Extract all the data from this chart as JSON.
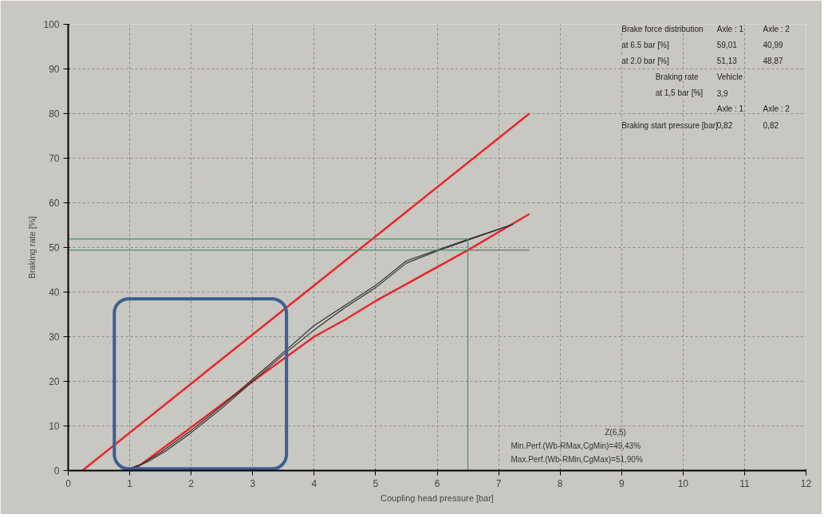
{
  "chart_data": {
    "type": "line",
    "xlabel": "Coupling head pressure [bar]",
    "ylabel": "Braking rate [%]",
    "xlim": [
      0,
      12
    ],
    "xticks": [
      0,
      1,
      2,
      3,
      4,
      5,
      6,
      7,
      8,
      9,
      10,
      11,
      12
    ],
    "ylim": [
      0,
      100
    ],
    "yticks": [
      0,
      10,
      20,
      30,
      40,
      50,
      60,
      70,
      80,
      90,
      100
    ],
    "grid": true,
    "marker": "none",
    "line_style": "solid",
    "series": [
      {
        "color": "#e8262a",
        "x": [
          0.23,
          7.5
        ],
        "values": [
          0,
          80
        ]
      },
      {
        "color": "#e8262a",
        "x": [
          1.05,
          2,
          3,
          4,
          4.5,
          5,
          6.5,
          7.5
        ],
        "values": [
          0,
          9.7,
          20,
          30,
          33.8,
          38,
          49.4,
          57.5
        ]
      },
      {
        "color": "#303030",
        "x": [
          0.9,
          1.2,
          1.5,
          2,
          2.5,
          3,
          3.5,
          4,
          4.5,
          5,
          5.5,
          6,
          6.5,
          7.24
        ],
        "values": [
          0,
          1.5,
          4,
          9,
          14.5,
          20.5,
          26.5,
          32.5,
          37,
          41.5,
          47,
          49.4,
          51.8,
          55.2
        ]
      },
      {
        "color": "#303030",
        "x": [
          0.95,
          1.3,
          1.6,
          2,
          2.5,
          3,
          3.5,
          4,
          4.5,
          5,
          5.5,
          6,
          6.5,
          7.2
        ],
        "values": [
          0,
          2,
          4.5,
          8.5,
          14,
          20,
          26,
          31.5,
          36.5,
          41,
          46.5,
          49.2,
          51.6,
          55
        ]
      },
      {
        "color": "#3a9a6a",
        "x": [
          0,
          6.5
        ],
        "values": [
          51.9,
          51.9
        ]
      },
      {
        "color": "#3a9a6a",
        "x": [
          0,
          6.5
        ],
        "values": [
          49.4,
          49.4
        ]
      },
      {
        "color": "#707070",
        "x": [
          6.5,
          7.5
        ],
        "values": [
          49.4,
          49.4
        ]
      },
      {
        "color": "#3a9a6a",
        "x": [
          6.5,
          6.5
        ],
        "values": [
          0,
          51.9
        ]
      }
    ],
    "annotations": [
      "Z(6,5)",
      "Min.Perf.(Wb-RMax,CgMin)=49,43%",
      "Max.Perf.(Wb-RMin,CgMax)=51,90%",
      "Brake force distribution",
      "Axle : 1",
      "Axle : 2",
      "at 6.5 bar [%]",
      "59,01",
      "40,99",
      "at 2.0 bar [%]",
      "51,13",
      "48,87",
      "Braking rate",
      "Vehicle",
      "at 1,5 bar [%]",
      "3,9",
      "Axle : 1",
      "Axle : 2",
      "Braking start pressure [bar]",
      "0,82",
      "0,82"
    ]
  }
}
